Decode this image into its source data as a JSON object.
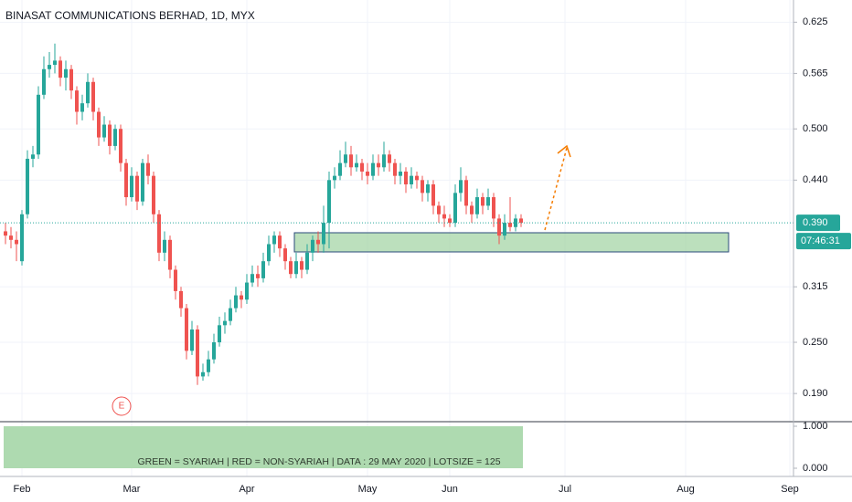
{
  "chart_data": {
    "type": "candlestick",
    "title": "BINASAT COMMUNICATIONS BERHAD, 1D, MYX",
    "up_color": "#26a69a",
    "down_color": "#ef5350",
    "categories": [
      null,
      null,
      null,
      null,
      "Feb",
      null,
      null,
      null,
      null,
      null,
      null,
      null,
      null,
      null,
      null,
      null,
      null,
      null,
      null,
      null,
      null,
      null,
      null,
      null,
      "Mar",
      null,
      null,
      null,
      null,
      null,
      null,
      null,
      null,
      null,
      null,
      null,
      null,
      null,
      null,
      null,
      null,
      null,
      null,
      null,
      null,
      "Apr",
      null,
      null,
      null,
      null,
      null,
      null,
      null,
      null,
      null,
      null,
      null,
      null,
      null,
      null,
      null,
      null,
      null,
      null,
      null,
      null,
      null,
      "May",
      null,
      null,
      null,
      null,
      null,
      null,
      null,
      null,
      null,
      null,
      null,
      null,
      null,
      null,
      "Jun",
      null,
      null,
      null,
      null,
      null,
      null,
      null,
      null,
      null,
      null,
      null,
      null,
      null,
      null,
      null,
      null,
      null,
      null,
      null,
      null,
      "Jul",
      null,
      null,
      null,
      null,
      null,
      null,
      null,
      null,
      null,
      null,
      null,
      null,
      null,
      null,
      null,
      null,
      null,
      null,
      null,
      null,
      null,
      "Aug",
      null,
      null,
      null,
      null,
      null,
      null,
      null,
      null,
      null,
      null,
      null,
      null,
      null,
      null,
      null,
      null,
      null,
      null,
      "Sep"
    ],
    "open": [
      null,
      0.38,
      0.375,
      0.37,
      0.345,
      0.4,
      0.465,
      0.47,
      0.54,
      0.57,
      0.575,
      0.58,
      0.56,
      0.57,
      0.545,
      0.52,
      0.53,
      0.555,
      0.52,
      0.49,
      0.505,
      0.48,
      0.5,
      0.46,
      0.42,
      0.445,
      0.415,
      0.46,
      0.445,
      0.4,
      0.355,
      0.37,
      0.335,
      0.31,
      0.29,
      0.24,
      0.265,
      0.21,
      0.215,
      0.23,
      0.25,
      0.27,
      0.275,
      0.29,
      0.305,
      0.3,
      0.32,
      0.33,
      0.325,
      0.345,
      0.365,
      0.375,
      0.36,
      0.345,
      0.33,
      0.345,
      0.335,
      0.355,
      0.37,
      0.365,
      0.39,
      0.44,
      0.445,
      0.46,
      0.47,
      0.455,
      0.46,
      0.45,
      0.445,
      0.46,
      0.455,
      0.47,
      0.46,
      0.445,
      0.45,
      0.435,
      0.445,
      0.44,
      0.425,
      0.435,
      0.41,
      0.4,
      0.395,
      0.39,
      0.425,
      0.44,
      0.41,
      0.4,
      0.42,
      0.41,
      0.42,
      0.395,
      0.375,
      0.39,
      0.385,
      0.395,
      null,
      null,
      null,
      null,
      null,
      null,
      null,
      null,
      null,
      null,
      null,
      null,
      null,
      null,
      null,
      null,
      null,
      null,
      null,
      null,
      null,
      null,
      null,
      null,
      null,
      null,
      null,
      null,
      null,
      null,
      null,
      null,
      null,
      null,
      null,
      null,
      null,
      null,
      null,
      null,
      null,
      null,
      null,
      null,
      null,
      null,
      null,
      null,
      null
    ],
    "high": [
      null,
      0.39,
      0.385,
      0.38,
      0.405,
      0.475,
      0.48,
      0.55,
      0.585,
      0.59,
      0.6,
      0.585,
      0.58,
      0.575,
      0.55,
      0.54,
      0.565,
      0.56,
      0.525,
      0.515,
      0.51,
      0.505,
      0.505,
      0.465,
      0.455,
      0.45,
      0.465,
      0.47,
      0.45,
      0.405,
      0.38,
      0.375,
      0.34,
      0.315,
      0.295,
      0.275,
      0.27,
      0.225,
      0.24,
      0.26,
      0.28,
      0.285,
      0.3,
      0.315,
      0.31,
      0.33,
      0.34,
      0.34,
      0.355,
      0.375,
      0.38,
      0.38,
      0.365,
      0.35,
      0.355,
      0.35,
      0.365,
      0.375,
      0.38,
      0.41,
      0.45,
      0.455,
      0.475,
      0.485,
      0.48,
      0.47,
      0.465,
      0.46,
      0.47,
      0.47,
      0.485,
      0.475,
      0.465,
      0.46,
      0.455,
      0.455,
      0.45,
      0.445,
      0.44,
      0.44,
      0.415,
      0.41,
      0.4,
      0.435,
      0.455,
      0.445,
      0.415,
      0.43,
      0.425,
      0.43,
      0.425,
      0.4,
      0.4,
      0.42,
      0.4,
      0.4,
      null,
      null,
      null,
      null,
      null,
      null,
      null,
      null,
      null,
      null,
      null,
      null,
      null,
      null,
      null,
      null,
      null,
      null,
      null,
      null,
      null,
      null,
      null,
      null,
      null,
      null,
      null,
      null,
      null,
      null,
      null,
      null,
      null,
      null,
      null,
      null,
      null,
      null,
      null,
      null,
      null,
      null,
      null,
      null,
      null,
      null,
      null,
      null,
      null
    ],
    "low": [
      null,
      0.365,
      0.36,
      0.345,
      0.34,
      0.395,
      0.455,
      0.465,
      0.535,
      0.56,
      0.565,
      0.55,
      0.545,
      0.535,
      0.505,
      0.51,
      0.525,
      0.51,
      0.48,
      0.485,
      0.47,
      0.475,
      0.45,
      0.41,
      0.415,
      0.405,
      0.41,
      0.435,
      0.39,
      0.345,
      0.345,
      0.325,
      0.3,
      0.28,
      0.23,
      0.235,
      0.2,
      0.205,
      0.21,
      0.225,
      0.245,
      0.26,
      0.27,
      0.285,
      0.29,
      0.295,
      0.315,
      0.315,
      0.32,
      0.34,
      0.355,
      0.35,
      0.335,
      0.325,
      0.325,
      0.325,
      0.33,
      0.345,
      0.355,
      0.355,
      0.36,
      0.43,
      0.44,
      0.455,
      0.445,
      0.45,
      0.44,
      0.435,
      0.44,
      0.445,
      0.45,
      0.45,
      0.435,
      0.435,
      0.425,
      0.43,
      0.43,
      0.415,
      0.415,
      0.4,
      0.39,
      0.385,
      0.385,
      0.385,
      0.415,
      0.4,
      0.39,
      0.395,
      0.4,
      0.405,
      0.385,
      0.365,
      0.37,
      0.38,
      0.38,
      0.385,
      null,
      null,
      null,
      null,
      null,
      null,
      null,
      null,
      null,
      null,
      null,
      null,
      null,
      null,
      null,
      null,
      null,
      null,
      null,
      null,
      null,
      null,
      null,
      null,
      null,
      null,
      null,
      null,
      null,
      null,
      null,
      null,
      null,
      null,
      null,
      null,
      null,
      null,
      null,
      null,
      null,
      null,
      null,
      null,
      null,
      null,
      null,
      null,
      null
    ],
    "close": [
      null,
      0.375,
      0.37,
      0.365,
      0.4,
      0.465,
      0.47,
      0.54,
      0.57,
      0.575,
      0.58,
      0.56,
      0.57,
      0.545,
      0.52,
      0.53,
      0.555,
      0.52,
      0.49,
      0.505,
      0.48,
      0.5,
      0.46,
      0.42,
      0.445,
      0.415,
      0.46,
      0.445,
      0.4,
      0.355,
      0.37,
      0.335,
      0.31,
      0.29,
      0.24,
      0.265,
      0.21,
      0.215,
      0.23,
      0.25,
      0.27,
      0.275,
      0.29,
      0.305,
      0.3,
      0.32,
      0.33,
      0.325,
      0.345,
      0.365,
      0.375,
      0.36,
      0.345,
      0.33,
      0.345,
      0.335,
      0.355,
      0.37,
      0.365,
      0.39,
      0.44,
      0.445,
      0.46,
      0.47,
      0.455,
      0.46,
      0.45,
      0.445,
      0.46,
      0.455,
      0.47,
      0.46,
      0.445,
      0.45,
      0.435,
      0.445,
      0.44,
      0.425,
      0.435,
      0.41,
      0.4,
      0.395,
      0.39,
      0.425,
      0.44,
      0.41,
      0.4,
      0.42,
      0.41,
      0.42,
      0.395,
      0.375,
      0.39,
      0.385,
      0.395,
      0.39,
      null,
      null,
      null,
      null,
      null,
      null,
      null,
      null,
      null,
      null,
      null,
      null,
      null,
      null,
      null,
      null,
      null,
      null,
      null,
      null,
      null,
      null,
      null,
      null,
      null,
      null,
      null,
      null,
      null,
      null,
      null,
      null,
      null,
      null,
      null,
      null,
      null,
      null,
      null,
      null,
      null,
      null,
      null,
      null,
      null,
      null,
      null,
      null,
      null
    ],
    "ylim": [
      0.157,
      0.651
    ],
    "yticks": [
      0.625,
      0.565,
      {
        "value": 0.5,
        "label": "0.500"
      },
      {
        "value": 0.44,
        "label": "0.440"
      },
      0.315,
      {
        "value": 0.25,
        "label": "0.250"
      },
      {
        "value": 0.19,
        "label": "0.190"
      }
    ],
    "grid": true,
    "last_price": {
      "value": 0.39,
      "label": "0.390"
    },
    "countdown": "07:46:31",
    "earnings_marker": "E",
    "indicator": {
      "text": "GREEN = SYARIAH   |   RED = NON-SYARIAH   |   DATA : 29 MAY 2020   |   LOTSIZE = 125",
      "ylim": [
        -0.196,
        1.109
      ],
      "yticks": [
        {
          "value": 1,
          "label": "1.000"
        },
        {
          "value": 0,
          "label": "0.000"
        }
      ]
    }
  }
}
